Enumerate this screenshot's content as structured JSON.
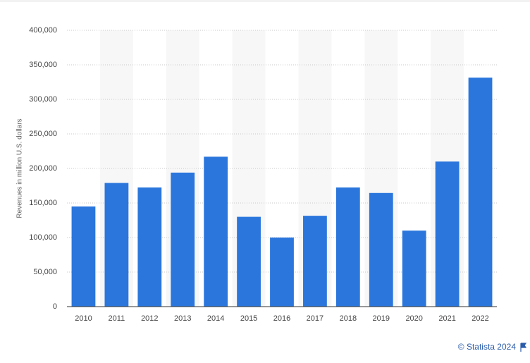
{
  "chart_data": {
    "type": "bar",
    "y_label": "Revenues in million U.S. dollars",
    "categories": [
      "2010",
      "2011",
      "2012",
      "2013",
      "2014",
      "2015",
      "2016",
      "2017",
      "2018",
      "2019",
      "2020",
      "2021",
      "2022"
    ],
    "values": [
      145000,
      179000,
      172500,
      194000,
      217000,
      130000,
      100000,
      131500,
      172500,
      164500,
      110000,
      210000,
      331500
    ],
    "color": "#2a76dd",
    "ylim": [
      0,
      400000
    ],
    "yticks": [
      0,
      {
        "value": 50000,
        "label": "50,000"
      },
      {
        "value": 100000,
        "label": "100,000"
      },
      {
        "value": 150000,
        "label": "150,000"
      },
      {
        "value": 200000,
        "label": "200,000"
      },
      {
        "value": 250000,
        "label": "250,000"
      },
      {
        "value": 300000,
        "label": "300,000"
      },
      {
        "value": 350000,
        "label": "350,000"
      },
      {
        "value": 400000,
        "label": "400,000"
      }
    ],
    "grid": true,
    "source": "© Statista 2024"
  }
}
